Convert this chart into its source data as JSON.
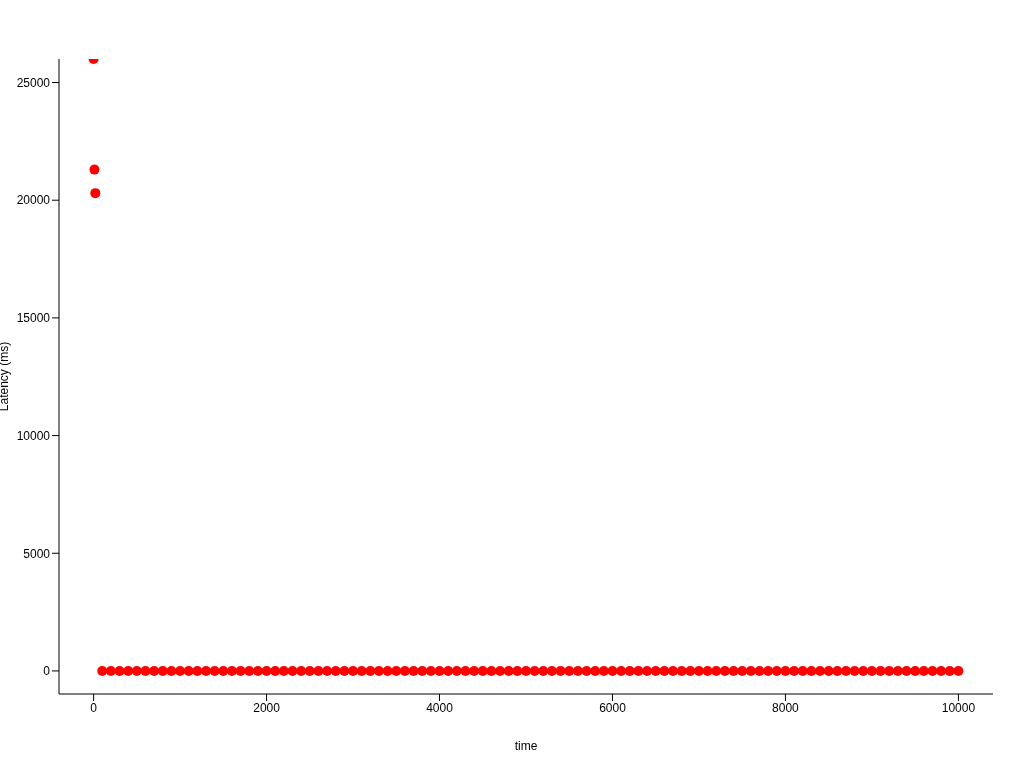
{
  "chart_data": {
    "type": "scatter",
    "xlabel": "time",
    "ylabel": "Latency (ms)",
    "xlim": [
      -400,
      10400
    ],
    "ylim": [
      -980,
      26000
    ],
    "xticks": [
      0,
      2000,
      4000,
      6000,
      8000,
      10000
    ],
    "yticks": [
      0,
      5000,
      10000,
      15000,
      20000,
      25000
    ],
    "grid": false,
    "legend": false,
    "marker": "circle",
    "series": [
      {
        "color": "#ff0000",
        "x": [
          0,
          10,
          20,
          100,
          200,
          300,
          400,
          500,
          600,
          700,
          800,
          900,
          1000,
          1100,
          1200,
          1300,
          1400,
          1500,
          1600,
          1700,
          1800,
          1900,
          2000,
          2100,
          2200,
          2300,
          2400,
          2500,
          2600,
          2700,
          2800,
          2900,
          3000,
          3100,
          3200,
          3300,
          3400,
          3500,
          3600,
          3700,
          3800,
          3900,
          4000,
          4100,
          4200,
          4300,
          4400,
          4500,
          4600,
          4700,
          4800,
          4900,
          5000,
          5100,
          5200,
          5300,
          5400,
          5500,
          5600,
          5700,
          5800,
          5900,
          6000,
          6100,
          6200,
          6300,
          6400,
          6500,
          6600,
          6700,
          6800,
          6900,
          7000,
          7100,
          7200,
          7300,
          7400,
          7500,
          7600,
          7700,
          7800,
          7900,
          8000,
          8100,
          8200,
          8300,
          8400,
          8500,
          8600,
          8700,
          8800,
          8900,
          9000,
          9100,
          9200,
          9300,
          9400,
          9500,
          9600,
          9700,
          9800,
          9900,
          10000
        ],
        "values": [
          26000,
          21300,
          20300,
          0,
          0,
          0,
          0,
          0,
          0,
          0,
          0,
          0,
          0,
          0,
          0,
          0,
          0,
          0,
          0,
          0,
          0,
          0,
          0,
          0,
          0,
          0,
          0,
          0,
          0,
          0,
          0,
          0,
          0,
          0,
          0,
          0,
          0,
          0,
          0,
          0,
          0,
          0,
          0,
          0,
          0,
          0,
          0,
          0,
          0,
          0,
          0,
          0,
          0,
          0,
          0,
          0,
          0,
          0,
          0,
          0,
          0,
          0,
          0,
          0,
          0,
          0,
          0,
          0,
          0,
          0,
          0,
          0,
          0,
          0,
          0,
          0,
          0,
          0,
          0,
          0,
          0,
          0,
          0,
          0,
          0,
          0,
          0,
          0,
          0,
          0,
          0,
          0,
          0,
          0,
          0,
          0,
          0,
          0,
          0,
          0,
          0,
          0,
          0
        ]
      }
    ]
  }
}
